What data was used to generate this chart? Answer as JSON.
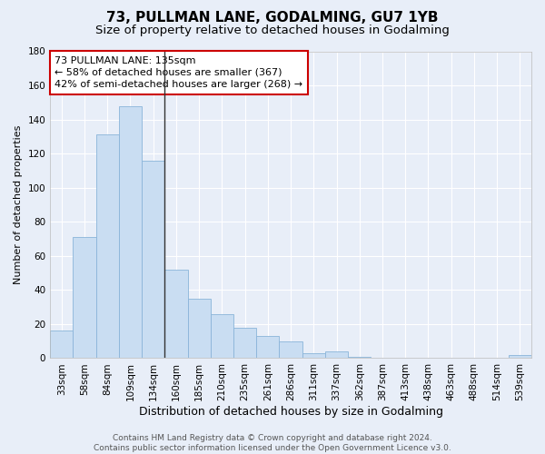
{
  "title1": "73, PULLMAN LANE, GODALMING, GU7 1YB",
  "title2": "Size of property relative to detached houses in Godalming",
  "xlabel": "Distribution of detached houses by size in Godalming",
  "ylabel": "Number of detached properties",
  "categories": [
    "33sqm",
    "58sqm",
    "84sqm",
    "109sqm",
    "134sqm",
    "160sqm",
    "185sqm",
    "210sqm",
    "235sqm",
    "261sqm",
    "286sqm",
    "311sqm",
    "337sqm",
    "362sqm",
    "387sqm",
    "413sqm",
    "438sqm",
    "463sqm",
    "488sqm",
    "514sqm",
    "539sqm"
  ],
  "values": [
    16,
    71,
    131,
    148,
    116,
    52,
    35,
    26,
    18,
    13,
    10,
    3,
    4,
    1,
    0,
    0,
    0,
    0,
    0,
    0,
    2
  ],
  "bar_color": "#c9ddf2",
  "bar_edge_color": "#8ab4d9",
  "highlight_bar_index": 4,
  "highlight_line_color": "#333333",
  "annotation_line1": "73 PULLMAN LANE: 135sqm",
  "annotation_line2": "← 58% of detached houses are smaller (367)",
  "annotation_line3": "42% of semi-detached houses are larger (268) →",
  "annotation_box_color": "#ffffff",
  "annotation_box_edge_color": "#cc0000",
  "ylim": [
    0,
    180
  ],
  "yticks": [
    0,
    20,
    40,
    60,
    80,
    100,
    120,
    140,
    160,
    180
  ],
  "background_color": "#e8eef8",
  "grid_color": "#ffffff",
  "footer_text": "Contains HM Land Registry data © Crown copyright and database right 2024.\nContains public sector information licensed under the Open Government Licence v3.0.",
  "title1_fontsize": 11,
  "title2_fontsize": 9.5,
  "xlabel_fontsize": 9,
  "ylabel_fontsize": 8,
  "tick_fontsize": 7.5,
  "annotation_fontsize": 8,
  "footer_fontsize": 6.5
}
